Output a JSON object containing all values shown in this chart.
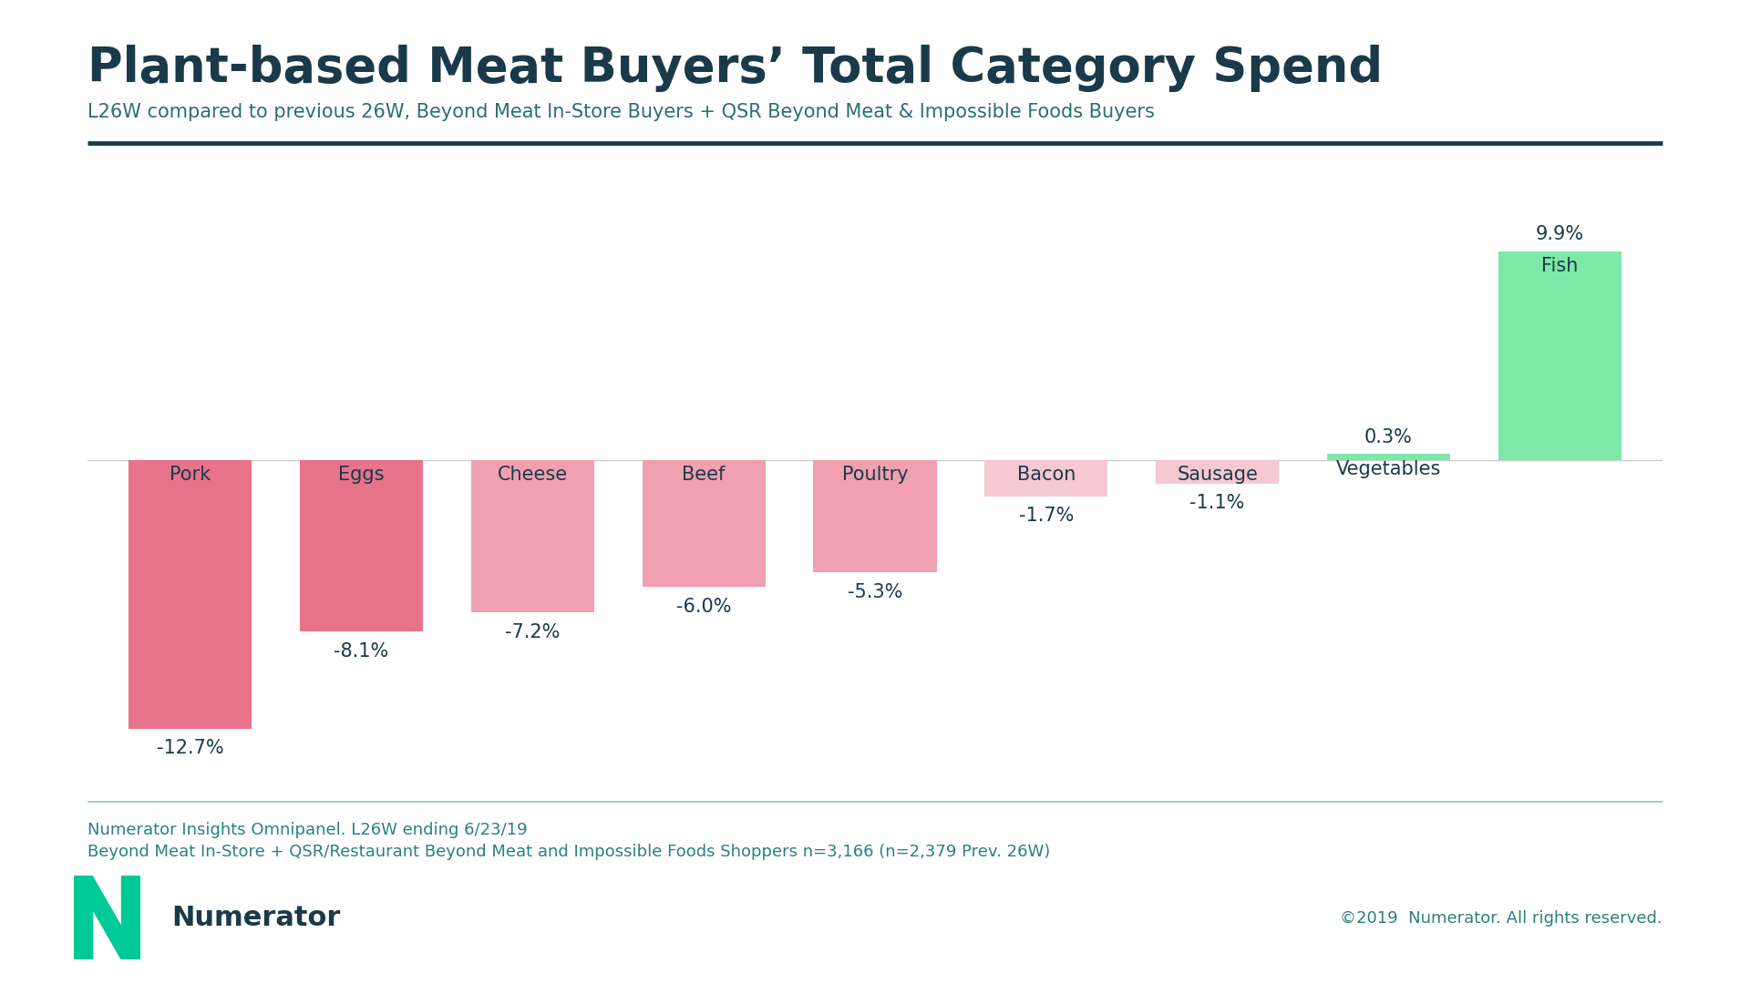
{
  "title": "Plant-based Meat Buyers’ Total Category Spend",
  "subtitle": "L26W compared to previous 26W, Beyond Meat In-Store Buyers + QSR Beyond Meat & Impossible Foods Buyers",
  "categories": [
    "Pork",
    "Eggs",
    "Cheese",
    "Beef",
    "Poultry",
    "Bacon",
    "Sausage",
    "Vegetables",
    "Fish"
  ],
  "values": [
    -12.7,
    -8.1,
    -7.2,
    -6.0,
    -5.3,
    -1.7,
    -1.1,
    0.3,
    9.9
  ],
  "labels": [
    "-12.7%",
    "-8.1%",
    "-7.2%",
    "-6.0%",
    "-5.3%",
    "-1.7%",
    "-1.1%",
    "0.3%",
    "9.9%"
  ],
  "bar_colors": [
    "#e8738a",
    "#e8738a",
    "#f0a0b0",
    "#f0a0b0",
    "#f0a0b0",
    "#f5c8d2",
    "#f5c8d2",
    "#7de8a8",
    "#7de8a8"
  ],
  "background_color": "#ffffff",
  "title_color": "#1a3a4a",
  "subtitle_color": "#2a7070",
  "label_color": "#1a3a4a",
  "category_label_color": "#1a3a4a",
  "footer_color": "#2a8080",
  "footer_line1": "Numerator Insights Omnipanel. L26W ending 6/23/19",
  "footer_line2": "Beyond Meat In-Store + QSR/Restaurant Beyond Meat and Impossible Foods Shoppers n=3,166 (n=2,379 Prev. 26W)",
  "copyright_text": "©2019  Numerator. All rights reserved.",
  "numerator_text": "Numerator",
  "divider_color_top": "#1a3a4a",
  "divider_color_bottom": "#aacaca",
  "zero_line_color": "#cccccc",
  "ylim": [
    -15,
    12
  ],
  "title_fontsize": 38,
  "subtitle_fontsize": 15,
  "label_fontsize": 15,
  "category_fontsize": 15,
  "footer_fontsize": 13,
  "numerator_fontsize": 22,
  "copyright_fontsize": 13,
  "bar_width": 0.72
}
